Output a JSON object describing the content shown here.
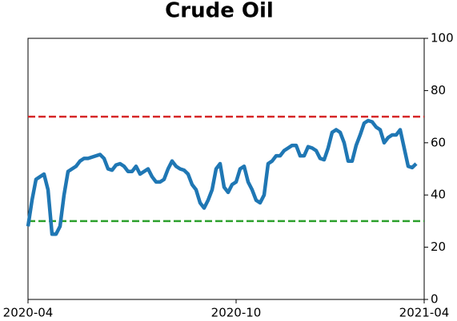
{
  "chart_data": {
    "type": "line",
    "title": "Crude Oil",
    "categories": [
      "2020-04",
      null,
      null,
      null,
      null,
      null,
      null,
      null,
      null,
      null,
      null,
      null,
      null,
      null,
      null,
      null,
      null,
      null,
      null,
      null,
      null,
      null,
      null,
      null,
      null,
      null,
      null,
      null,
      null,
      null,
      null,
      null,
      null,
      null,
      null,
      null,
      null,
      null,
      null,
      null,
      null,
      null,
      null,
      null,
      null,
      null,
      null,
      null,
      null,
      null,
      null,
      null,
      "2020-10",
      null,
      null,
      null,
      null,
      null,
      null,
      null,
      null,
      null,
      null,
      null,
      null,
      null,
      null,
      null,
      null,
      null,
      null,
      null,
      null,
      null,
      null,
      null,
      null,
      null,
      null,
      null,
      null,
      null,
      null,
      null,
      null,
      null,
      null,
      null,
      null,
      null,
      null,
      null,
      null,
      null,
      null,
      null,
      null,
      null,
      null,
      "2021-04"
    ],
    "values": [
      28,
      38,
      46,
      47,
      48,
      42,
      25,
      25,
      28,
      40,
      49,
      50,
      51,
      53,
      54,
      54,
      54.5,
      55,
      55.5,
      54,
      50,
      49.5,
      51.5,
      52,
      51,
      49,
      49,
      51,
      48,
      49,
      50,
      47,
      45,
      45,
      46,
      50,
      53,
      51,
      50,
      49.5,
      48,
      44,
      42,
      37,
      35,
      38,
      42,
      50,
      52,
      43,
      41,
      44,
      45,
      50,
      51,
      45,
      42,
      38,
      37,
      40,
      52,
      53,
      55,
      55,
      57,
      58,
      59,
      59,
      55,
      55,
      58.5,
      58,
      57,
      54,
      53.5,
      58,
      64,
      65,
      64,
      60,
      53,
      53,
      59,
      63,
      67.5,
      68.5,
      68,
      66,
      65,
      60,
      62,
      63,
      63,
      65,
      58,
      51,
      50.5,
      52,
      null,
      null
    ],
    "color": "#1f77b4",
    "ylim": [
      0,
      100
    ],
    "yticks": [
      0,
      20,
      40,
      60,
      80,
      100
    ],
    "reference_lines": [
      {
        "value": 70,
        "color": "#d62728"
      },
      {
        "value": 30,
        "color": "#2ca02c"
      }
    ]
  }
}
